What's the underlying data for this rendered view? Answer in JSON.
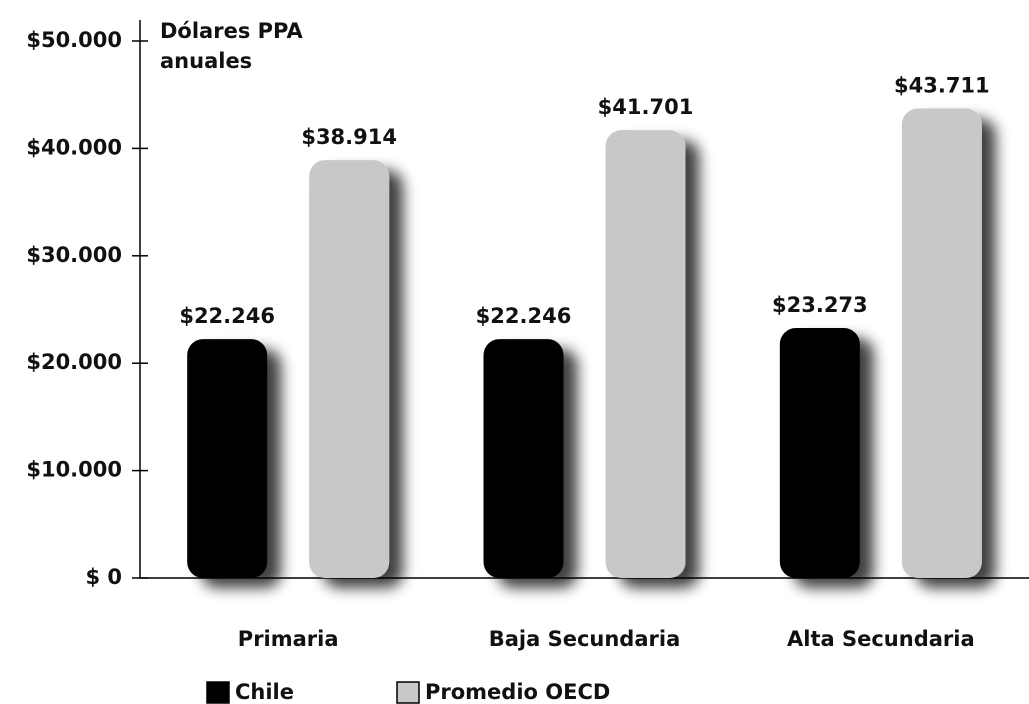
{
  "chart_data": {
    "type": "bar",
    "y_label": "Dólares PPA anuales",
    "categories": [
      "Primaria",
      "Baja Secundaria",
      "Alta Secundaria"
    ],
    "series": [
      {
        "name": "Chile",
        "color": "#000000",
        "values": [
          22246,
          22246,
          23273
        ],
        "value_labels": [
          "$22.246",
          "$22.246",
          "$23.273"
        ]
      },
      {
        "name": "Promedio OECD",
        "color": "#c8c8c8",
        "values": [
          38914,
          41701,
          43711
        ],
        "value_labels": [
          "$38.914",
          "$41.701",
          "$43.711"
        ]
      }
    ],
    "ylim": [
      0,
      50000
    ],
    "yticks": [
      {
        "value": 0,
        "label": "$ 0"
      },
      {
        "value": 10000,
        "label": "$10.000"
      },
      {
        "value": 20000,
        "label": "$20.000"
      },
      {
        "value": 30000,
        "label": "$30.000"
      },
      {
        "value": 40000,
        "label": "$40.000"
      },
      {
        "value": 50000,
        "label": "$50.000"
      }
    ],
    "legend": "bottom"
  }
}
